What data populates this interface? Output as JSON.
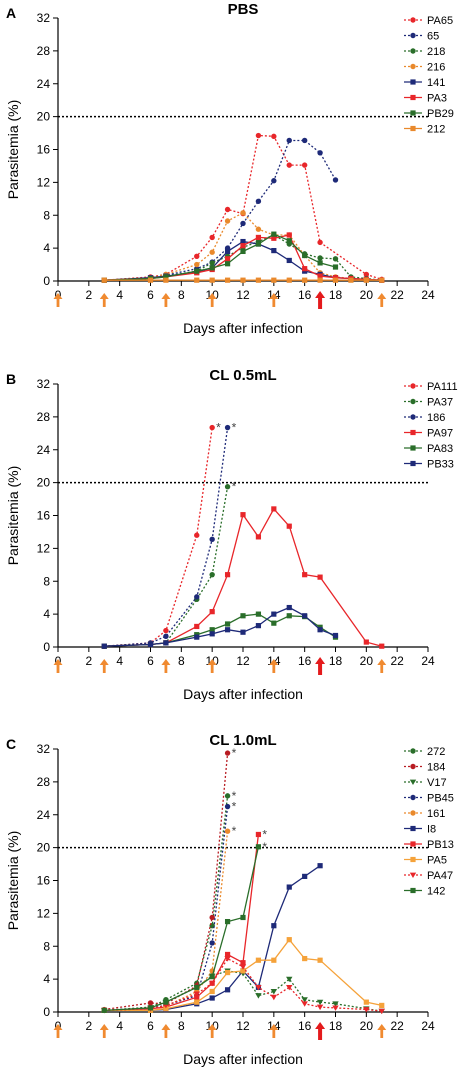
{
  "colors": {
    "red": "#e8262a",
    "darkred": "#b81c22",
    "navy": "#1e2a78",
    "green": "#2a6e2a",
    "orange": "#e9892c",
    "lightorange": "#f5a23a",
    "arrow_orange": "#f08a30",
    "arrow_red": "#e41a1c"
  },
  "chart_data": [
    {
      "type": "line",
      "panel_letter": "A",
      "title": "PBS",
      "xlabel": "Days after infection",
      "ylabel": "Parasitemia (%)",
      "xlim": [
        0,
        24
      ],
      "ylim": [
        0,
        32
      ],
      "xticks": [
        "0",
        "2",
        "4",
        "6",
        "8",
        "10",
        "12",
        "14",
        "16",
        "18",
        "20",
        "22",
        "24"
      ],
      "yticks": [
        "0",
        "4",
        "8",
        "12",
        "16",
        "20",
        "24",
        "28",
        "32"
      ],
      "threshold": 20,
      "orange_arrow_days": [
        0,
        3,
        7,
        10,
        14,
        21
      ],
      "red_arrow_days": [
        17
      ],
      "series": [
        {
          "name": "PA65",
          "color": "#e8262a",
          "marker": "circle",
          "dashed": true,
          "x": [
            3,
            6,
            7,
            9,
            10,
            11,
            12,
            13,
            14,
            15,
            16,
            17,
            20,
            21
          ],
          "y": [
            0.1,
            0.5,
            0.8,
            3.0,
            5.3,
            8.7,
            8.2,
            17.7,
            17.6,
            14.1,
            14.1,
            4.7,
            0.8,
            0.2
          ]
        },
        {
          "name": "65",
          "color": "#1e2a78",
          "marker": "circle",
          "dashed": true,
          "x": [
            3,
            6,
            7,
            9,
            10,
            11,
            12,
            13,
            14,
            15,
            16,
            17,
            18
          ],
          "y": [
            0.1,
            0.3,
            0.7,
            1.5,
            2.3,
            4.0,
            7.0,
            9.7,
            12.2,
            17.1,
            17.1,
            15.6,
            12.3
          ]
        },
        {
          "name": "218",
          "color": "#2a6e2a",
          "marker": "circle",
          "dashed": true,
          "x": [
            3,
            6,
            7,
            9,
            10,
            11,
            12,
            13,
            14,
            15,
            16,
            17,
            18,
            19,
            20,
            21
          ],
          "y": [
            0.1,
            0.3,
            0.6,
            1.2,
            2.2,
            3.0,
            4.1,
            4.8,
            5.6,
            4.5,
            3.3,
            2.8,
            2.7,
            0.5,
            0.3,
            0.1
          ]
        },
        {
          "name": "216",
          "color": "#e9892c",
          "marker": "circle",
          "dashed": true,
          "x": [
            3,
            6,
            7,
            9,
            10,
            11,
            12,
            13,
            14,
            15,
            16,
            17,
            18,
            19,
            20,
            21
          ],
          "y": [
            0.1,
            0.4,
            0.8,
            2.0,
            3.5,
            7.3,
            8.3,
            6.3,
            5.6,
            5.6,
            3.1,
            1.0,
            0.5,
            0.3,
            0.2,
            0.1
          ]
        },
        {
          "name": "141",
          "color": "#1e2a78",
          "marker": "square",
          "dashed": false,
          "x": [
            3,
            6,
            7,
            9,
            10,
            11,
            12,
            13,
            14,
            15,
            16,
            17,
            18,
            19,
            20,
            21
          ],
          "y": [
            0.1,
            0.4,
            0.6,
            1.1,
            1.6,
            3.6,
            4.8,
            4.5,
            3.7,
            2.5,
            1.2,
            0.8,
            0.4,
            0.3,
            0.2,
            0.1
          ]
        },
        {
          "name": "PA3",
          "color": "#e8262a",
          "marker": "square",
          "dashed": false,
          "x": [
            3,
            6,
            7,
            9,
            10,
            11,
            12,
            13,
            14,
            15,
            16,
            17,
            18,
            19,
            20,
            21
          ],
          "y": [
            0.1,
            0.3,
            0.5,
            1.0,
            1.4,
            2.7,
            4.3,
            5.3,
            5.2,
            5.6,
            1.5,
            0.6,
            0.4,
            0.3,
            0.2,
            0.1
          ]
        },
        {
          "name": "PB29",
          "color": "#2a6e2a",
          "marker": "square",
          "dashed": false,
          "x": [
            3,
            6,
            7,
            9,
            10,
            11,
            12,
            13,
            14,
            15,
            16,
            17,
            18
          ],
          "y": [
            0.1,
            0.3,
            0.5,
            1.2,
            1.6,
            2.1,
            3.6,
            4.5,
            5.7,
            4.9,
            3.1,
            2.2,
            1.7
          ]
        },
        {
          "name": "212",
          "color": "#e9892c",
          "marker": "square",
          "dashed": false,
          "x": [
            3,
            6,
            7,
            9,
            10,
            11,
            12,
            13,
            14,
            15,
            16,
            17,
            18,
            19,
            20,
            21
          ],
          "y": [
            0.1,
            0.1,
            0.1,
            0.1,
            0.1,
            0.1,
            0.1,
            0.1,
            0.1,
            0.1,
            0.1,
            0.1,
            0.1,
            0.1,
            0.1,
            0.1
          ]
        }
      ]
    },
    {
      "type": "line",
      "panel_letter": "B",
      "title": "CL 0.5mL",
      "xlabel": "Days after infection",
      "ylabel": "Parasitemia (%)",
      "xlim": [
        0,
        24
      ],
      "ylim": [
        0,
        32
      ],
      "xticks": [
        "0",
        "2",
        "4",
        "6",
        "8",
        "10",
        "12",
        "14",
        "16",
        "18",
        "20",
        "22",
        "24"
      ],
      "yticks": [
        "0",
        "4",
        "8",
        "12",
        "16",
        "20",
        "24",
        "28",
        "32"
      ],
      "threshold": 20,
      "orange_arrow_days": [
        0,
        3,
        7,
        10,
        14,
        21
      ],
      "red_arrow_days": [
        17
      ],
      "series": [
        {
          "name": "PA111",
          "color": "#e8262a",
          "marker": "circle",
          "dashed": true,
          "death_marker": true,
          "x": [
            3,
            6,
            7,
            9,
            10
          ],
          "y": [
            0.1,
            0.5,
            2.0,
            13.6,
            26.7
          ]
        },
        {
          "name": "PA37",
          "color": "#2a6e2a",
          "marker": "circle",
          "dashed": true,
          "death_marker": true,
          "x": [
            3,
            6,
            7,
            9,
            10,
            11
          ],
          "y": [
            0.1,
            0.3,
            0.5,
            5.8,
            8.8,
            19.5
          ]
        },
        {
          "name": "186",
          "color": "#1e2a78",
          "marker": "circle",
          "dashed": true,
          "death_marker": true,
          "x": [
            3,
            6,
            7,
            9,
            10,
            11
          ],
          "y": [
            0.1,
            0.5,
            1.3,
            6.1,
            13.1,
            26.7
          ]
        },
        {
          "name": "PA97",
          "color": "#e8262a",
          "marker": "square",
          "dashed": false,
          "x": [
            3,
            6,
            7,
            9,
            10,
            11,
            12,
            13,
            14,
            15,
            16,
            17,
            20,
            21
          ],
          "y": [
            0.1,
            0.3,
            0.5,
            2.5,
            4.3,
            8.8,
            16.1,
            13.4,
            16.8,
            14.7,
            8.8,
            8.5,
            0.6,
            0.1
          ]
        },
        {
          "name": "PA83",
          "color": "#2a6e2a",
          "marker": "square",
          "dashed": false,
          "x": [
            3,
            6,
            7,
            9,
            10,
            11,
            12,
            13,
            14,
            15,
            16,
            17,
            18
          ],
          "y": [
            0.1,
            0.3,
            0.5,
            1.5,
            2.1,
            2.8,
            3.8,
            4.0,
            2.9,
            3.8,
            3.7,
            2.4,
            1.2
          ]
        },
        {
          "name": "PB33",
          "color": "#1e2a78",
          "marker": "square",
          "dashed": false,
          "x": [
            3,
            6,
            7,
            9,
            10,
            11,
            12,
            13,
            14,
            15,
            16,
            17,
            18
          ],
          "y": [
            0.1,
            0.3,
            0.5,
            1.2,
            1.6,
            2.1,
            1.8,
            2.6,
            4.0,
            4.8,
            3.8,
            2.1,
            1.4
          ]
        }
      ]
    },
    {
      "type": "line",
      "panel_letter": "C",
      "title": "CL 1.0mL",
      "xlabel": "Days after infection",
      "ylabel": "Parasitemia (%)",
      "xlim": [
        0,
        24
      ],
      "ylim": [
        0,
        32
      ],
      "xticks": [
        "0",
        "2",
        "4",
        "6",
        "8",
        "10",
        "12",
        "14",
        "16",
        "18",
        "20",
        "22",
        "24"
      ],
      "yticks": [
        "0",
        "4",
        "8",
        "12",
        "16",
        "20",
        "24",
        "28",
        "32"
      ],
      "threshold": 20,
      "orange_arrow_days": [
        0,
        3,
        7,
        10,
        14,
        21
      ],
      "red_arrow_days": [
        17
      ],
      "series": [
        {
          "name": "272",
          "color": "#2a6e2a",
          "marker": "circle",
          "dashed": true,
          "death_marker": true,
          "x": [
            3,
            6,
            7,
            9,
            10,
            11
          ],
          "y": [
            0.2,
            0.6,
            1.5,
            3.5,
            10.5,
            26.3
          ]
        },
        {
          "name": "184",
          "color": "#b81c22",
          "marker": "circle",
          "dashed": true,
          "death_marker": true,
          "x": [
            3,
            6,
            7,
            9,
            10,
            11
          ],
          "y": [
            0.3,
            1.1,
            1.0,
            3.2,
            11.5,
            31.5
          ]
        },
        {
          "name": "V17",
          "color": "#2a6e2a",
          "marker": "triangle-down",
          "dashed": true,
          "x": [
            3,
            6,
            7,
            9,
            10,
            11,
            12,
            13,
            14,
            15,
            16,
            17,
            18,
            20,
            21
          ],
          "y": [
            0.2,
            0.5,
            1.2,
            3.0,
            4.4,
            5.0,
            4.7,
            2.0,
            2.5,
            4.0,
            1.5,
            1.2,
            1.0,
            0.4,
            0.1
          ]
        },
        {
          "name": "PB45",
          "color": "#1e2a78",
          "marker": "circle",
          "dashed": true,
          "death_marker": true,
          "x": [
            3,
            6,
            7,
            9,
            10,
            11
          ],
          "y": [
            0.2,
            0.5,
            0.8,
            2.0,
            8.4,
            25.0
          ]
        },
        {
          "name": "161",
          "color": "#e9892c",
          "marker": "circle",
          "dashed": true,
          "death_marker": true,
          "x": [
            3,
            6,
            7,
            9,
            10,
            11
          ],
          "y": [
            0.2,
            0.4,
            0.7,
            2.5,
            5.0,
            22.0
          ]
        },
        {
          "name": "I8",
          "color": "#1e2a78",
          "marker": "square",
          "dashed": false,
          "x": [
            3,
            6,
            7,
            9,
            10,
            11,
            12,
            13,
            14,
            15,
            16,
            17
          ],
          "y": [
            0.2,
            0.2,
            0.3,
            1.0,
            1.7,
            2.7,
            5.0,
            3.0,
            10.5,
            15.2,
            16.5,
            17.8
          ]
        },
        {
          "name": "PB13",
          "color": "#e8262a",
          "marker": "square",
          "dashed": false,
          "death_marker": true,
          "x": [
            3,
            6,
            7,
            9,
            10,
            11,
            12,
            13
          ],
          "y": [
            0.2,
            0.4,
            0.6,
            1.8,
            3.5,
            7.0,
            6.0,
            21.6
          ]
        },
        {
          "name": "PA5",
          "color": "#f5a23a",
          "marker": "square",
          "dashed": false,
          "x": [
            3,
            6,
            7,
            9,
            10,
            11,
            12,
            13,
            14,
            15,
            16,
            17,
            20,
            21
          ],
          "y": [
            0.2,
            0.2,
            0.4,
            1.2,
            2.5,
            4.8,
            5.0,
            6.3,
            6.3,
            8.8,
            6.5,
            6.3,
            1.2,
            0.8
          ]
        },
        {
          "name": "PA47",
          "color": "#e8262a",
          "marker": "triangle-down",
          "dashed": true,
          "x": [
            3,
            6,
            7,
            9,
            10,
            11,
            12,
            13,
            14,
            15,
            16,
            17,
            18,
            20,
            21
          ],
          "y": [
            0.2,
            0.4,
            0.8,
            2.2,
            3.5,
            6.5,
            5.5,
            3.0,
            1.8,
            3.0,
            1.0,
            0.6,
            0.5,
            0.3,
            0.1
          ]
        },
        {
          "name": "142",
          "color": "#2a6e2a",
          "marker": "square",
          "dashed": false,
          "death_marker": true,
          "x": [
            3,
            6,
            7,
            9,
            10,
            11,
            12,
            13
          ],
          "y": [
            0.2,
            0.5,
            1.2,
            3.0,
            4.3,
            11.0,
            11.5,
            20.1
          ]
        }
      ]
    }
  ]
}
